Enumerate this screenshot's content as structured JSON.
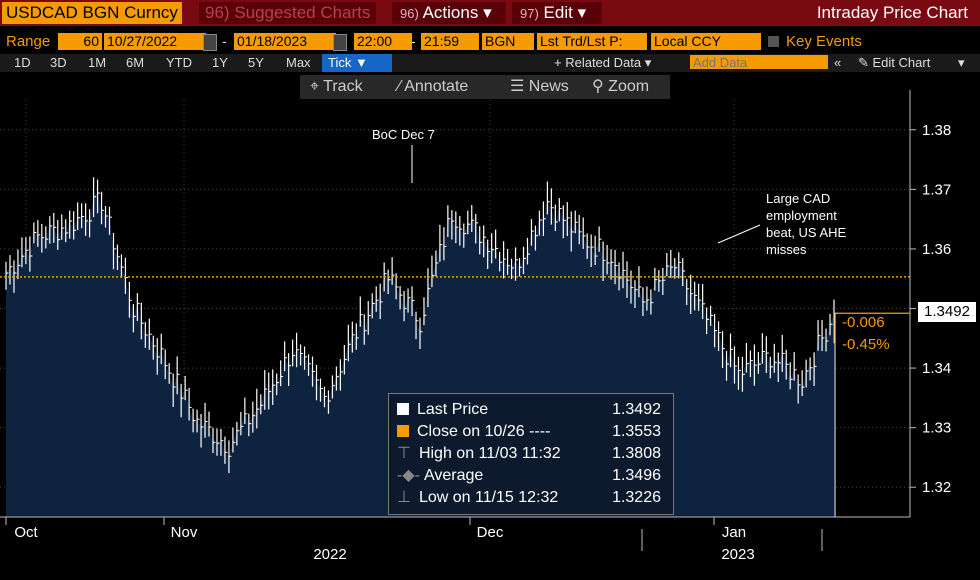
{
  "topbar": {
    "ticker": "USDCAD BGN Curncy",
    "suggested_num": "96)",
    "suggested": "Suggested Charts",
    "actions_num": "96)",
    "actions": "Actions",
    "edit_num": "97)",
    "edit": "Edit",
    "caret": "▾",
    "title": "Intraday Price Chart"
  },
  "params": {
    "range_label": "Range",
    "range_days": "60",
    "start_date": "10/27/2022",
    "dash": "-",
    "end_date": "01/18/2023",
    "start_time": "22:00",
    "end_time": "21:59",
    "source": "BGN",
    "field": "Lst Trd/Lst P:",
    "currency": "Local CCY",
    "key_events": "Key Events"
  },
  "ranges": [
    "1D",
    "3D",
    "1M",
    "6M",
    "YTD",
    "1Y",
    "5Y",
    "Max"
  ],
  "tick_label": "Tick ▼",
  "related_data": "+ Related Data ▾",
  "add_data_placeholder": "Add Data",
  "collapse": "«",
  "edit_chart": "✎ Edit Chart",
  "more": "▾",
  "tools": {
    "track": "Track",
    "annotate": "Annotate",
    "news": "News",
    "zoom": "Zoom"
  },
  "annotations": {
    "boc": "BoC Dec 7",
    "cad_line1": "Large CAD",
    "cad_line2": "employment",
    "cad_line3": "beat, US AHE",
    "cad_line4": "misses"
  },
  "last_price_tag": "1.3492",
  "change_abs": "-0.006",
  "change_pct": "-0.45%",
  "legend": {
    "last_label": "Last Price",
    "last_value": "1.3492",
    "close_label": "Close on 10/26 ----",
    "close_value": "1.3553",
    "high_label": "High on 11/03 11:32",
    "high_value": "1.3808",
    "avg_label": "Average",
    "avg_value": "1.3496",
    "low_label": "Low on 11/15 12:32",
    "low_value": "1.3226"
  },
  "colors": {
    "accent": "#f59b00",
    "area": "#0e2340",
    "topbar": "#7a0a12",
    "tick_active": "#1666c8"
  },
  "chart_data": {
    "type": "line",
    "series": [
      {
        "name": "Last Price",
        "x": [
          "Oct",
          "Oct",
          "Oct",
          "Oct",
          "Nov",
          "Nov",
          "Nov",
          "Nov",
          "Nov",
          "Nov",
          "Nov",
          "Nov",
          "Dec",
          "Dec",
          "Dec",
          "Dec",
          "Dec",
          "Dec",
          "Dec",
          "Dec",
          "Dec",
          "Jan",
          "Jan",
          "Jan",
          "Jan",
          "Jan",
          "Jan"
        ],
        "values": [
          1.356,
          1.362,
          1.364,
          1.368,
          1.35,
          1.341,
          1.331,
          1.327,
          1.334,
          1.343,
          1.335,
          1.346,
          1.355,
          1.348,
          1.366,
          1.362,
          1.357,
          1.368,
          1.362,
          1.359,
          1.351,
          1.357,
          1.348,
          1.339,
          1.342,
          1.338,
          1.3492
        ]
      }
    ],
    "reference_line": {
      "name": "Close on 10/26",
      "value": 1.3553
    },
    "y_ticks": [
      1.32,
      1.33,
      1.34,
      1.35,
      1.36,
      1.37,
      1.38
    ],
    "y_tick_labels": [
      "1.32",
      "1.33",
      "1.34",
      "1.35",
      "1.36",
      "1.37",
      "1.38"
    ],
    "ylim": [
      1.315,
      1.385
    ],
    "x_month_labels": [
      "Oct",
      "Nov",
      "Dec",
      "Jan"
    ],
    "x_year_labels": [
      "2022",
      "2023"
    ],
    "grid": true
  }
}
